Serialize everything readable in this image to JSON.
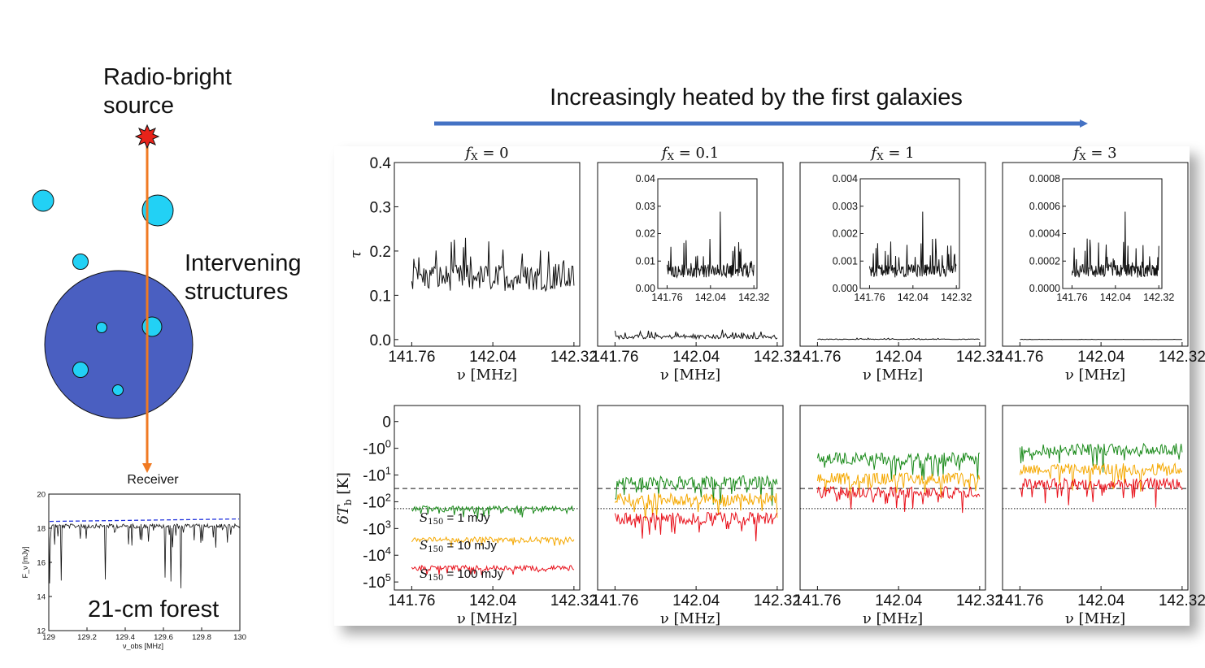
{
  "heading": "Increasingly heated by the first galaxies",
  "schematic": {
    "source_label_line1": "Radio-bright",
    "source_label_line2": "source",
    "structures_label_line1": "Intervening",
    "structures_label_line2": "structures",
    "receiver_label": "Receiver",
    "colors": {
      "big_halo": "#4a5fc1",
      "small_halo": "#22d1f5",
      "sightline": "#f07a22",
      "source": "#e8231a"
    }
  },
  "forest_inset": {
    "label": "21-cm forest",
    "ylabel": "F_ν [mJy]",
    "xlabel": "ν_obs [MHz]",
    "xticks": [
      "129",
      "129.2",
      "129.4",
      "129.6",
      "129.8",
      "130"
    ],
    "yticks": [
      "12",
      "14",
      "16",
      "18",
      "20"
    ],
    "xlim": [
      129,
      130
    ],
    "ylim": [
      12,
      20
    ],
    "continuum_level": 18.4,
    "baseline_level": 18.25
  },
  "panels": {
    "xlabel": "ν [MHz]",
    "xticks": [
      "141.76",
      "142.04",
      "142.32"
    ],
    "xlim": [
      141.7,
      142.34
    ]
  },
  "chart_data": [
    {
      "type": "line",
      "row": "tau",
      "ylabel": "τ",
      "ylim": [
        -0.015,
        0.4
      ],
      "yticks": [
        "0.0",
        "0.1",
        "0.2",
        "0.3",
        "0.4"
      ],
      "columns": [
        {
          "title": "f_X = 0",
          "mean": 0.14,
          "amplitude": 0.1,
          "inset": null
        },
        {
          "title": "f_X = 0.1",
          "mean": 0.006,
          "amplitude": 0.015,
          "inset": {
            "ylim": [
              0,
              0.04
            ],
            "yticks": [
              "0.00",
              "0.01",
              "0.02",
              "0.03",
              "0.04"
            ],
            "xticks": [
              "141.76",
              "142.04",
              "142.32"
            ]
          }
        },
        {
          "title": "f_X = 1",
          "mean": 0.0006,
          "amplitude": 0.0025,
          "inset": {
            "ylim": [
              0,
              0.004
            ],
            "yticks": [
              "0.000",
              "0.001",
              "0.002",
              "0.003",
              "0.004"
            ],
            "xticks": [
              "141.76",
              "142.04",
              "142.32"
            ]
          }
        },
        {
          "title": "f_X = 3",
          "mean": 0.00012,
          "amplitude": 0.0007,
          "inset": {
            "ylim": [
              0,
              0.0008
            ],
            "yticks": [
              "0.0000",
              "0.0002",
              "0.0004",
              "0.0006",
              "0.0008"
            ],
            "xticks": [
              "141.76",
              "142.04",
              "142.32"
            ]
          }
        }
      ]
    },
    {
      "type": "line",
      "row": "dTb",
      "ylabel": "δT_b [K]",
      "yscale": "symlog",
      "yticks": [
        "0",
        "-10^0",
        "-10^1",
        "-10^2",
        "-10^3",
        "-10^4",
        "-10^5"
      ],
      "reference_lines": {
        "dashed": -32,
        "dotted": -180
      },
      "series": [
        {
          "name": "S150 = 1 mJy",
          "legend_value": "= 1 mJy",
          "color": "#1a8a1a"
        },
        {
          "name": "S150 = 10 mJy",
          "legend_value": "= 10 mJy",
          "color": "#f5a800"
        },
        {
          "name": "S150 = 100 mJy",
          "legend_value": "= 100 mJy",
          "color": "#e8101a"
        }
      ],
      "levels": [
        [
          -180,
          -2600,
          -30000
        ],
        [
          -18,
          -80,
          -420
        ],
        [
          -2.4,
          -14,
          -45
        ],
        [
          -1.1,
          -6,
          -22
        ]
      ]
    }
  ]
}
